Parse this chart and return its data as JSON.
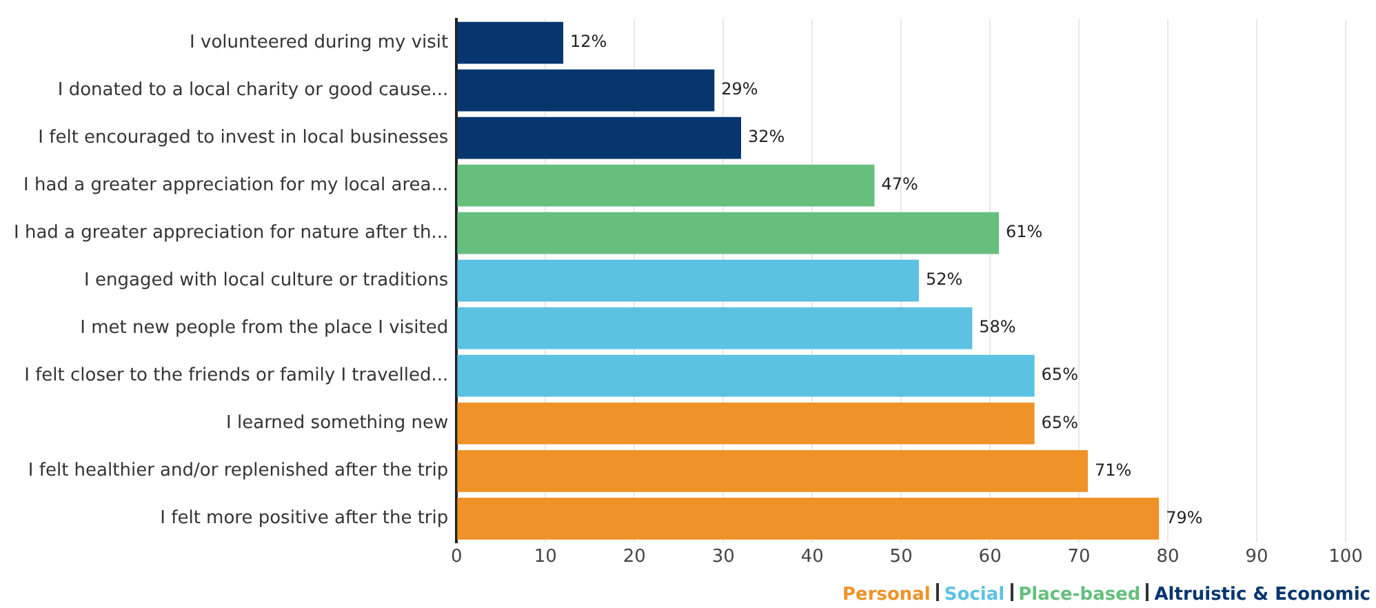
{
  "chart_data": {
    "type": "bar",
    "orientation": "horizontal",
    "categories": [
      "I volunteered during my visit",
      "I donated to a local charity or good cause...",
      "I felt encouraged to invest in local businesses",
      "I had a greater appreciation for my local area...",
      "I had a greater appreciation for nature after th...",
      "I engaged with local culture or traditions",
      "I met new people from the place I visited",
      "I felt closer to the friends or family I travelled...",
      "I learned something new",
      "I felt healthier and/or replenished after the trip",
      "I felt more positive after the trip"
    ],
    "series": [
      {
        "name": "Personal",
        "color": "#ef9228",
        "values": [
          null,
          null,
          null,
          null,
          null,
          null,
          null,
          null,
          65,
          71,
          79
        ],
        "value_labels": [
          null,
          null,
          null,
          null,
          null,
          null,
          null,
          null,
          "65%",
          "71%",
          "79%"
        ]
      },
      {
        "name": "Social",
        "color": "#5bc2e1",
        "values": [
          null,
          null,
          null,
          null,
          null,
          52,
          58,
          65,
          null,
          null,
          null
        ],
        "value_labels": [
          null,
          null,
          null,
          null,
          null,
          "52%",
          "58%",
          "65%",
          null,
          null,
          null
        ]
      },
      {
        "name": "Place-based",
        "color": "#66bf7d",
        "values": [
          null,
          null,
          null,
          47,
          61,
          null,
          null,
          null,
          null,
          null,
          null
        ],
        "value_labels": [
          null,
          null,
          null,
          "47%",
          "61%",
          null,
          null,
          null,
          null,
          null,
          null
        ]
      },
      {
        "name": "Altruistic & Economic",
        "color": "#07366f",
        "values": [
          12,
          29,
          32,
          null,
          null,
          null,
          null,
          null,
          null,
          null,
          null
        ],
        "value_labels": [
          "12%",
          "29%",
          "32%",
          null,
          null,
          null,
          null,
          null,
          null,
          null,
          null
        ]
      }
    ],
    "xlim": [
      0,
      100
    ],
    "xticks": [
      0,
      10,
      20,
      30,
      40,
      50,
      60,
      70,
      80,
      90,
      100
    ],
    "grid": "x",
    "legend": "bottom right"
  }
}
